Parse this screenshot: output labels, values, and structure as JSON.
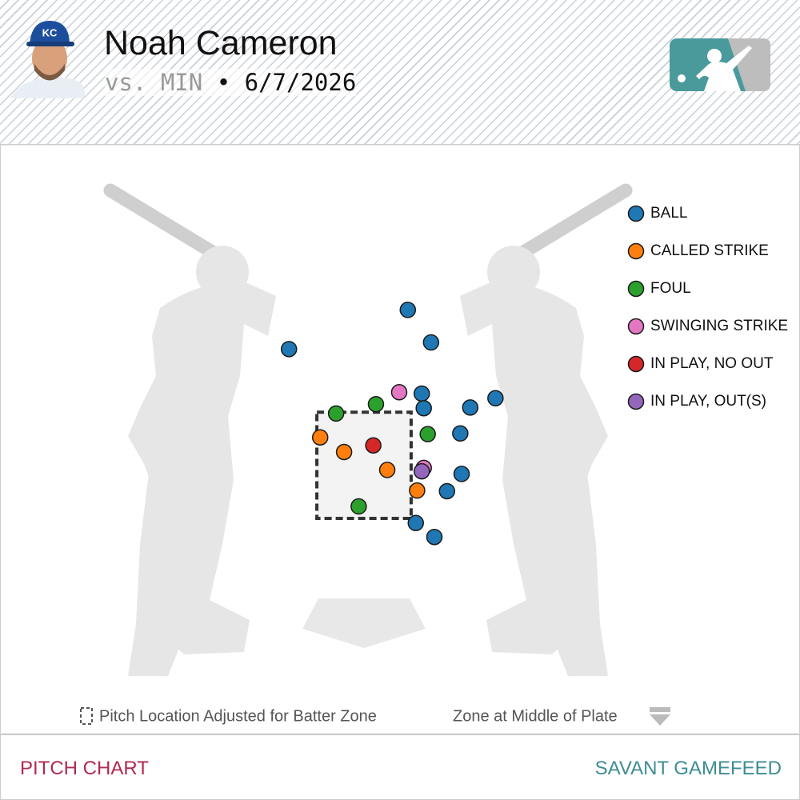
{
  "header": {
    "player": "Noah Cameron",
    "opponent": "vs. MIN",
    "separator": "•",
    "date": "6/7/2026"
  },
  "chart_data": {
    "type": "scatter",
    "xlim": [
      -4,
      4
    ],
    "ylim": [
      0,
      6
    ],
    "strike_zone": {
      "x": [
        -0.71,
        0.71
      ],
      "z": [
        1.5,
        3.1
      ]
    },
    "series": [
      {
        "name": "BALL",
        "color": "#1f77b4",
        "x": [
          0.66,
          1.01,
          -1.13,
          0.87,
          0.9,
          1.6,
          1.98,
          1.45,
          1.47,
          1.25,
          0.78,
          1.06
        ],
        "values": [
          4.64,
          4.15,
          4.05,
          3.38,
          3.16,
          3.17,
          3.31,
          2.78,
          2.17,
          1.91,
          1.43,
          1.22
        ]
      },
      {
        "name": "CALLED STRIKE",
        "color": "#ff7f0e",
        "x": [
          -0.66,
          -0.3,
          0.35,
          0.8
        ],
        "values": [
          2.72,
          2.5,
          2.23,
          1.92
        ]
      },
      {
        "name": "FOUL",
        "color": "#2ca02c",
        "x": [
          -0.42,
          0.18,
          0.96,
          -0.08
        ],
        "values": [
          3.08,
          3.22,
          2.77,
          1.68
        ]
      },
      {
        "name": "SWINGING STRIKE",
        "color": "#e377c2",
        "x": [
          0.53,
          0.9
        ],
        "values": [
          3.4,
          2.26
        ]
      },
      {
        "name": "IN PLAY, NO OUT",
        "color": "#d62728",
        "x": [
          0.14
        ],
        "values": [
          2.6
        ]
      },
      {
        "name": "IN PLAY, OUT(S)",
        "color": "#9467bd",
        "x": [
          0.87
        ],
        "values": [
          2.21
        ]
      }
    ]
  },
  "footer": {
    "adjusted_note": "Pitch Location Adjusted for Batter Zone",
    "zone_note": "Zone at Middle of Plate"
  },
  "nav": [
    "PITCH CHART",
    "SAVANT GAMEFEED"
  ]
}
